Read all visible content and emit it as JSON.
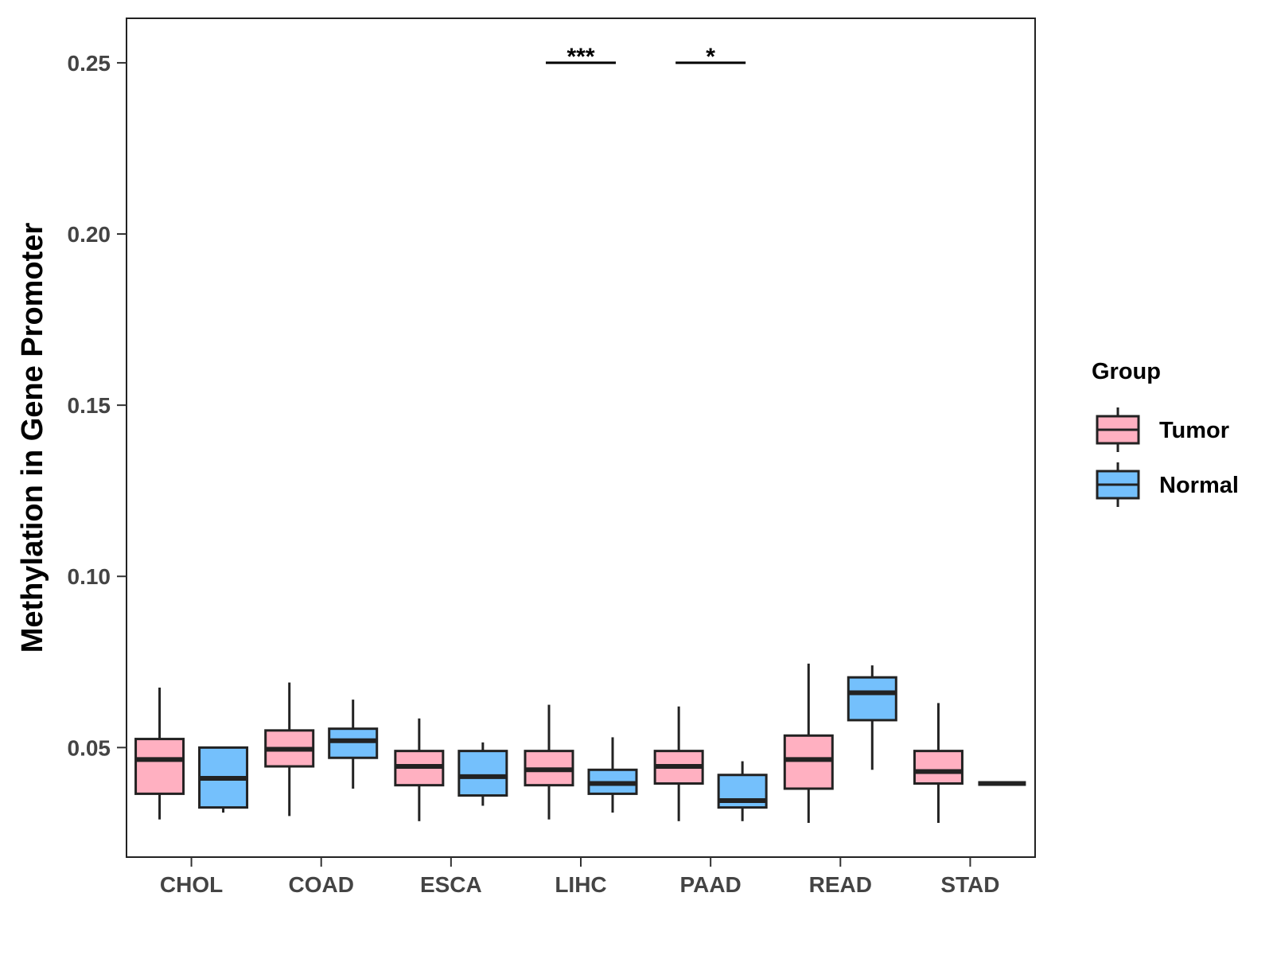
{
  "chart_data": {
    "type": "boxplot",
    "title": "",
    "xlabel": "",
    "ylabel": "Methylation in Gene Promoter",
    "ylim": [
      0.018,
      0.263
    ],
    "yticks": [
      0.05,
      0.1,
      0.15,
      0.2,
      0.25
    ],
    "ytick_labels": [
      "0.05",
      "0.10",
      "0.15",
      "0.20",
      "0.25"
    ],
    "categories": [
      "CHOL",
      "COAD",
      "ESCA",
      "LIHC",
      "PAAD",
      "READ",
      "STAD"
    ],
    "legend": {
      "title": "Group",
      "position": "right"
    },
    "series": [
      {
        "name": "Tumor",
        "color": "#FFB0C1",
        "boxes": [
          {
            "whisker_low": 0.029,
            "q1": 0.0365,
            "median": 0.0465,
            "q3": 0.0525,
            "whisker_high": 0.0675
          },
          {
            "whisker_low": 0.03,
            "q1": 0.0445,
            "median": 0.0495,
            "q3": 0.055,
            "whisker_high": 0.069
          },
          {
            "whisker_low": 0.0285,
            "q1": 0.039,
            "median": 0.0445,
            "q3": 0.049,
            "whisker_high": 0.0585
          },
          {
            "whisker_low": 0.029,
            "q1": 0.039,
            "median": 0.0435,
            "q3": 0.049,
            "whisker_high": 0.0625
          },
          {
            "whisker_low": 0.0285,
            "q1": 0.0395,
            "median": 0.0445,
            "q3": 0.049,
            "whisker_high": 0.062
          },
          {
            "whisker_low": 0.028,
            "q1": 0.038,
            "median": 0.0465,
            "q3": 0.0535,
            "whisker_high": 0.0745
          },
          {
            "whisker_low": 0.028,
            "q1": 0.0395,
            "median": 0.043,
            "q3": 0.049,
            "whisker_high": 0.063
          }
        ]
      },
      {
        "name": "Normal",
        "color": "#74C0FC",
        "boxes": [
          {
            "whisker_low": 0.031,
            "q1": 0.0325,
            "median": 0.041,
            "q3": 0.05,
            "whisker_high": 0.05
          },
          {
            "whisker_low": 0.038,
            "q1": 0.047,
            "median": 0.052,
            "q3": 0.0555,
            "whisker_high": 0.064
          },
          {
            "whisker_low": 0.033,
            "q1": 0.036,
            "median": 0.0415,
            "q3": 0.049,
            "whisker_high": 0.0515
          },
          {
            "whisker_low": 0.031,
            "q1": 0.0365,
            "median": 0.0395,
            "q3": 0.0435,
            "whisker_high": 0.053
          },
          {
            "whisker_low": 0.0285,
            "q1": 0.0325,
            "median": 0.0345,
            "q3": 0.042,
            "whisker_high": 0.046
          },
          {
            "whisker_low": 0.0435,
            "q1": 0.058,
            "median": 0.066,
            "q3": 0.0705,
            "whisker_high": 0.074
          },
          {
            "whisker_low": 0.0395,
            "q1": 0.0395,
            "median": 0.0395,
            "q3": 0.0395,
            "whisker_high": 0.0395
          }
        ]
      }
    ],
    "annotations": [
      {
        "category": "LIHC",
        "text": "***",
        "y": 0.25
      },
      {
        "category": "PAAD",
        "text": "*",
        "y": 0.25
      }
    ]
  }
}
